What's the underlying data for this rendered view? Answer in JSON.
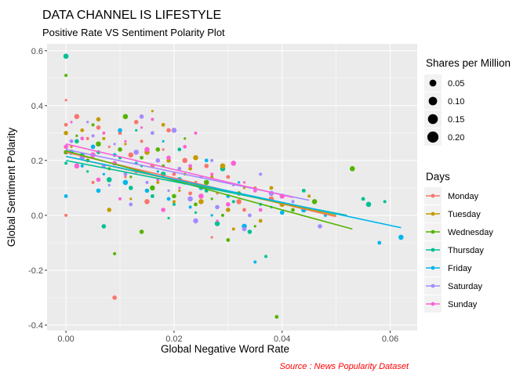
{
  "chart_data": {
    "type": "scatter",
    "title": "DATA CHANNEL IS LIFESTYLE",
    "subtitle": "Positive Rate VS Sentiment Polarity Plot",
    "xlabel": "Global Negative Word Rate",
    "ylabel": "Global Sentiment Polarity",
    "caption": "Source : News Popularity Dataset",
    "caption_color": "#ff0000",
    "xlim": [
      -0.0035,
      0.065
    ],
    "ylim": [
      -0.42,
      0.625
    ],
    "x_ticks": [
      0.0,
      0.02,
      0.04,
      0.06
    ],
    "x_tick_labels": [
      "0.00",
      "0.02",
      "0.04",
      "0.06"
    ],
    "y_ticks": [
      -0.4,
      -0.2,
      0.0,
      0.2,
      0.4,
      0.6
    ],
    "y_tick_labels": [
      "-0.4",
      "-0.2",
      "0.0",
      "0.2",
      "0.4",
      "0.6"
    ],
    "grid": true,
    "panel_background": "#ebebeb",
    "grid_color": "#ffffff",
    "size_legend": {
      "title": "Shares per Million",
      "labels": [
        "0.05",
        "0.10",
        "0.15",
        "0.20"
      ],
      "values": [
        0.05,
        0.1,
        0.15,
        0.2
      ]
    },
    "color_legend": {
      "title": "Days",
      "placement": "right"
    },
    "series": [
      {
        "name": "Monday",
        "color": "#F8766D",
        "trend": {
          "x": [
            0.0,
            0.05
          ],
          "y": [
            0.23,
            -0.005
          ]
        },
        "points": [
          [
            0.0,
            0.42
          ],
          [
            0.0,
            0.33
          ],
          [
            0.002,
            0.36
          ],
          [
            0.004,
            0.28
          ],
          [
            0.006,
            0.32
          ],
          [
            0.008,
            0.25
          ],
          [
            0.01,
            0.3
          ],
          [
            0.012,
            0.22
          ],
          [
            0.014,
            0.27
          ],
          [
            0.016,
            0.18
          ],
          [
            0.018,
            0.24
          ],
          [
            0.02,
            0.15
          ],
          [
            0.022,
            0.2
          ],
          [
            0.024,
            0.12
          ],
          [
            0.026,
            0.18
          ],
          [
            0.028,
            0.08
          ],
          [
            0.03,
            0.14
          ],
          [
            0.032,
            0.05
          ],
          [
            0.035,
            0.1
          ],
          [
            0.009,
            -0.3
          ],
          [
            0.027,
            -0.08
          ],
          [
            0.033,
            0.02
          ],
          [
            0.015,
            0.05
          ],
          [
            0.005,
            0.12
          ],
          [
            0.019,
            0.31
          ],
          [
            0.011,
            0.14
          ],
          [
            0.023,
            0.08
          ],
          [
            0.038,
            0.06
          ],
          [
            0.0,
            0.0
          ],
          [
            0.013,
            0.34
          ]
        ]
      },
      {
        "name": "Tuesday",
        "color": "#C49A00",
        "trend": {
          "x": [
            0.0,
            0.05
          ],
          "y": [
            0.215,
            0.0
          ]
        },
        "points": [
          [
            0.0,
            0.3
          ],
          [
            0.001,
            0.25
          ],
          [
            0.003,
            0.31
          ],
          [
            0.005,
            0.22
          ],
          [
            0.007,
            0.28
          ],
          [
            0.009,
            0.19
          ],
          [
            0.011,
            0.26
          ],
          [
            0.013,
            0.16
          ],
          [
            0.015,
            0.23
          ],
          [
            0.017,
            0.12
          ],
          [
            0.019,
            0.2
          ],
          [
            0.021,
            0.09
          ],
          [
            0.023,
            0.17
          ],
          [
            0.025,
            0.05
          ],
          [
            0.027,
            0.14
          ],
          [
            0.03,
            0.02
          ],
          [
            0.033,
            0.1
          ],
          [
            0.036,
            -0.02
          ],
          [
            0.04,
            0.04
          ],
          [
            0.045,
            0.07
          ],
          [
            0.006,
            0.35
          ],
          [
            0.012,
            0.06
          ],
          [
            0.018,
            0.33
          ],
          [
            0.024,
            0.21
          ],
          [
            0.031,
            -0.05
          ],
          [
            0.008,
            0.02
          ],
          [
            0.016,
            0.38
          ],
          [
            0.038,
            0.1
          ],
          [
            0.029,
            0.18
          ],
          [
            0.02,
            0.05
          ]
        ]
      },
      {
        "name": "Wednesday",
        "color": "#53B400",
        "trend": {
          "x": [
            0.0,
            0.053
          ],
          "y": [
            0.235,
            -0.05
          ]
        },
        "points": [
          [
            0.0,
            0.51
          ],
          [
            0.0,
            0.23
          ],
          [
            0.002,
            0.29
          ],
          [
            0.004,
            0.2
          ],
          [
            0.006,
            0.26
          ],
          [
            0.008,
            0.17
          ],
          [
            0.01,
            0.24
          ],
          [
            0.012,
            0.14
          ],
          [
            0.014,
            0.21
          ],
          [
            0.016,
            0.1
          ],
          [
            0.018,
            0.18
          ],
          [
            0.02,
            0.07
          ],
          [
            0.022,
            0.15
          ],
          [
            0.024,
            0.04
          ],
          [
            0.026,
            0.12
          ],
          [
            0.029,
            0.0
          ],
          [
            0.032,
            0.08
          ],
          [
            0.035,
            -0.04
          ],
          [
            0.039,
            -0.37
          ],
          [
            0.053,
            0.17
          ],
          [
            0.009,
            -0.14
          ],
          [
            0.014,
            -0.06
          ],
          [
            0.022,
            0.28
          ],
          [
            0.03,
            -0.09
          ],
          [
            0.046,
            0.05
          ],
          [
            0.005,
            0.33
          ],
          [
            0.017,
            0.24
          ],
          [
            0.027,
            0.06
          ],
          [
            0.042,
            0.02
          ],
          [
            0.011,
            0.36
          ]
        ]
      },
      {
        "name": "Thursday",
        "color": "#00C094",
        "trend": {
          "x": [
            0.0,
            0.052
          ],
          "y": [
            0.2,
            0.0
          ]
        },
        "points": [
          [
            0.0,
            0.58
          ],
          [
            0.0,
            0.19
          ],
          [
            0.002,
            0.27
          ],
          [
            0.004,
            0.16
          ],
          [
            0.006,
            0.23
          ],
          [
            0.008,
            0.13
          ],
          [
            0.01,
            0.21
          ],
          [
            0.012,
            0.1
          ],
          [
            0.014,
            0.18
          ],
          [
            0.016,
            0.07
          ],
          [
            0.018,
            0.15
          ],
          [
            0.02,
            0.04
          ],
          [
            0.022,
            0.12
          ],
          [
            0.024,
            0.01
          ],
          [
            0.026,
            0.09
          ],
          [
            0.028,
            -0.03
          ],
          [
            0.031,
            0.05
          ],
          [
            0.034,
            -0.06
          ],
          [
            0.038,
            0.03
          ],
          [
            0.055,
            0.06
          ],
          [
            0.056,
            0.04
          ],
          [
            0.059,
            0.05
          ],
          [
            0.007,
            -0.04
          ],
          [
            0.013,
            0.31
          ],
          [
            0.021,
            0.24
          ],
          [
            0.029,
            0.17
          ],
          [
            0.037,
            -0.15
          ],
          [
            0.003,
            0.22
          ],
          [
            0.019,
            -0.01
          ],
          [
            0.044,
            0.09
          ]
        ]
      },
      {
        "name": "Friday",
        "color": "#00B6EB",
        "trend": {
          "x": [
            0.0,
            0.062
          ],
          "y": [
            0.215,
            -0.045
          ]
        },
        "points": [
          [
            0.0,
            0.07
          ],
          [
            0.001,
            0.23
          ],
          [
            0.003,
            0.18
          ],
          [
            0.005,
            0.25
          ],
          [
            0.007,
            0.15
          ],
          [
            0.009,
            0.22
          ],
          [
            0.011,
            0.12
          ],
          [
            0.013,
            0.19
          ],
          [
            0.015,
            0.09
          ],
          [
            0.017,
            0.16
          ],
          [
            0.019,
            0.06
          ],
          [
            0.021,
            0.13
          ],
          [
            0.023,
            0.03
          ],
          [
            0.025,
            0.1
          ],
          [
            0.027,
            0.0
          ],
          [
            0.03,
            0.07
          ],
          [
            0.033,
            -0.04
          ],
          [
            0.036,
            0.04
          ],
          [
            0.04,
            0.01
          ],
          [
            0.056,
            0.045
          ],
          [
            0.058,
            -0.1
          ],
          [
            0.062,
            -0.08
          ],
          [
            0.035,
            -0.17
          ],
          [
            0.01,
            0.31
          ],
          [
            0.018,
            0.27
          ],
          [
            0.026,
            0.2
          ],
          [
            0.044,
            0.02
          ],
          [
            0.048,
            0.0
          ],
          [
            0.006,
            0.09
          ],
          [
            0.032,
            0.12
          ]
        ]
      },
      {
        "name": "Saturday",
        "color": "#A58AFF",
        "trend": {
          "x": [
            0.0,
            0.045
          ],
          "y": [
            0.24,
            0.055
          ]
        },
        "points": [
          [
            0.0,
            0.0
          ],
          [
            0.001,
            0.27
          ],
          [
            0.003,
            0.21
          ],
          [
            0.005,
            0.29
          ],
          [
            0.007,
            0.18
          ],
          [
            0.009,
            0.26
          ],
          [
            0.011,
            0.15
          ],
          [
            0.013,
            0.23
          ],
          [
            0.015,
            0.12
          ],
          [
            0.017,
            0.2
          ],
          [
            0.019,
            0.09
          ],
          [
            0.021,
            0.17
          ],
          [
            0.023,
            0.06
          ],
          [
            0.025,
            0.14
          ],
          [
            0.028,
            0.03
          ],
          [
            0.031,
            0.11
          ],
          [
            0.034,
            0.0
          ],
          [
            0.038,
            0.08
          ],
          [
            0.042,
            0.05
          ],
          [
            0.047,
            -0.04
          ],
          [
            0.004,
            0.34
          ],
          [
            0.012,
            0.04
          ],
          [
            0.02,
            0.31
          ],
          [
            0.027,
            0.2
          ],
          [
            0.033,
            -0.05
          ],
          [
            0.008,
            0.11
          ],
          [
            0.016,
            0.3
          ],
          [
            0.024,
            -0.02
          ],
          [
            0.036,
            0.15
          ],
          [
            0.014,
            0.36
          ]
        ]
      },
      {
        "name": "Sunday",
        "color": "#FB61D7",
        "trend": {
          "x": [
            0.0,
            0.042
          ],
          "y": [
            0.26,
            0.065
          ]
        },
        "points": [
          [
            0.0,
            0.25
          ],
          [
            0.001,
            0.34
          ],
          [
            0.003,
            0.28
          ],
          [
            0.005,
            0.22
          ],
          [
            0.007,
            0.3
          ],
          [
            0.009,
            0.19
          ],
          [
            0.011,
            0.27
          ],
          [
            0.013,
            0.16
          ],
          [
            0.015,
            0.24
          ],
          [
            0.017,
            0.13
          ],
          [
            0.019,
            0.21
          ],
          [
            0.021,
            0.1
          ],
          [
            0.023,
            0.18
          ],
          [
            0.025,
            0.07
          ],
          [
            0.027,
            0.15
          ],
          [
            0.03,
            0.04
          ],
          [
            0.033,
            0.12
          ],
          [
            0.036,
            0.02
          ],
          [
            0.04,
            0.07
          ],
          [
            0.024,
            0.3
          ],
          [
            0.006,
            0.13
          ],
          [
            0.014,
            0.32
          ],
          [
            0.022,
            0.25
          ],
          [
            0.031,
            0.19
          ],
          [
            0.01,
            0.06
          ],
          [
            0.018,
            0.02
          ],
          [
            0.028,
            -0.02
          ],
          [
            0.035,
            0.09
          ],
          [
            0.002,
            0.18
          ],
          [
            0.016,
            0.35
          ]
        ]
      }
    ]
  }
}
